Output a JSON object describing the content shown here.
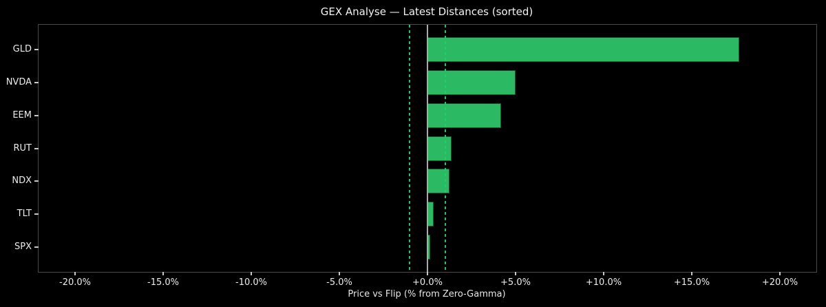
{
  "colors": {
    "background": "#000000",
    "bar": "#2cb964",
    "zero_line": "#aaaaaa",
    "threshold_line": "#1dcf6b",
    "spine": "#4a4a4a",
    "tick": "#c8c8c8",
    "text": "#ebebeb"
  },
  "chart_data": {
    "type": "bar",
    "orientation": "horizontal",
    "title": "GEX Analyse — Latest Distances (sorted)",
    "xlabel": "Price vs Flip (% from Zero-Gamma)",
    "categories": [
      "GLD",
      "NVDA",
      "EEM",
      "RUT",
      "NDX",
      "TLT",
      "SPX"
    ],
    "values": [
      17.7,
      5.0,
      4.2,
      1.35,
      1.25,
      0.35,
      0.15
    ],
    "xlim": [
      -22.08,
      22.08
    ],
    "x_ticks": [
      -20,
      -15,
      -10,
      -5,
      0,
      5,
      10,
      15,
      20
    ],
    "x_tick_labels": [
      "-20.0%",
      "-15.0%",
      "-10.0%",
      "-5.0%",
      "+0.0%",
      "+5.0%",
      "+10.0%",
      "+15.0%",
      "+20.0%"
    ],
    "reference_lines": [
      {
        "x": 0.0,
        "style": "solid",
        "color": "#aaaaaa"
      },
      {
        "x": -1.0,
        "style": "dashed",
        "color": "#1dcf6b"
      },
      {
        "x": 1.0,
        "style": "dashed",
        "color": "#1dcf6b"
      }
    ],
    "grid": false,
    "legend": null,
    "bar_height_fraction": 0.75
  }
}
